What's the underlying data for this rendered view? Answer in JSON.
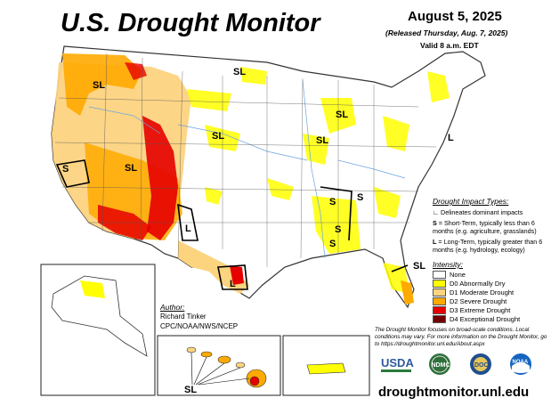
{
  "header": {
    "title": "U.S. Drought Monitor",
    "date": "August 5, 2025",
    "released": "(Released Thursday, Aug. 7, 2025)",
    "valid": "Valid 8 a.m. EDT"
  },
  "impact_types": {
    "title": "Drought Impact Types:",
    "delineates": "Delineates dominant impacts",
    "s_key": "S",
    "s_text": "= Short-Term, typically less than 6 months (e.g. agriculture, grasslands)",
    "l_key": "L",
    "l_text": "= Long-Term, typically greater than 6 months (e.g. hydrology, ecology)"
  },
  "intensity": {
    "title": "Intensity:",
    "items": [
      {
        "label": "None",
        "color": "#ffffff"
      },
      {
        "label": "D0 Abnormally Dry",
        "color": "#ffff00"
      },
      {
        "label": "D1 Moderate Drought",
        "color": "#fcd37f"
      },
      {
        "label": "D2 Severe Drought",
        "color": "#ffaa00"
      },
      {
        "label": "D3 Extreme Drought",
        "color": "#e60000"
      },
      {
        "label": "D4 Exceptional Drought",
        "color": "#730000"
      }
    ]
  },
  "author": {
    "label": "Author:",
    "name": "Richard Tinker",
    "org": "CPC/NOAA/NWS/NCEP"
  },
  "note": "The Drought Monitor focuses on broad-scale conditions. Local conditions may vary. For more information on the Drought Monitor, go to https://droughtmonitor.unl.edu/About.aspx",
  "website": "droughtmonitor.unl.edu",
  "map_labels": {
    "sl": "SL",
    "s": "S",
    "l": "L"
  },
  "logos": {
    "usda": "USDA",
    "ndmc": "NDMC",
    "doc": "DOC",
    "noaa": "NOAA"
  }
}
